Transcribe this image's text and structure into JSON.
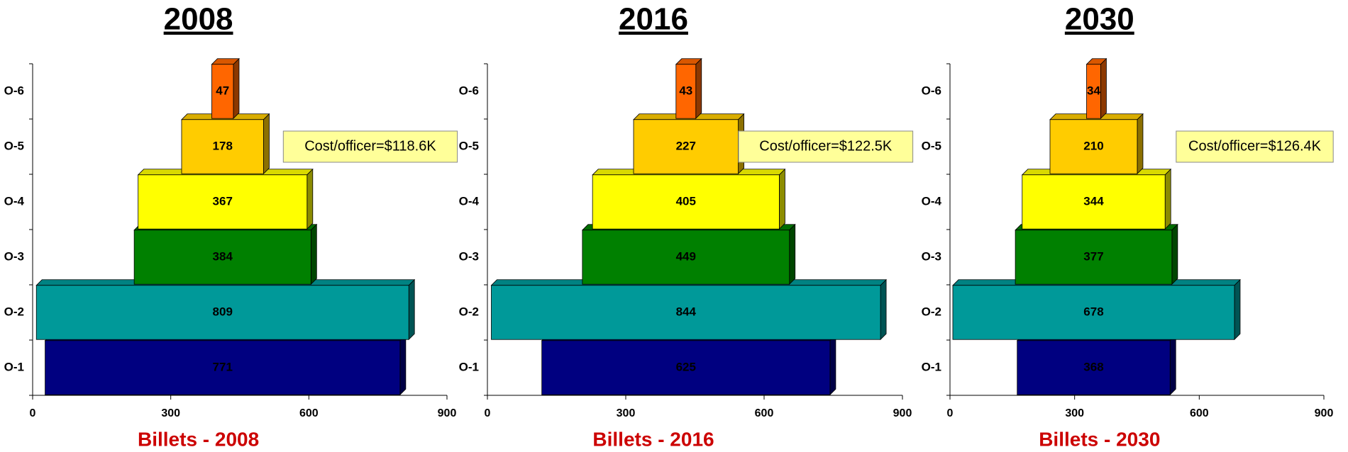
{
  "chart_data": [
    {
      "type": "bar",
      "title": "2008",
      "x_label": "Billets - 2008",
      "categories": [
        "O-1",
        "O-2",
        "O-3",
        "O-4",
        "O-5",
        "O-6"
      ],
      "values": [
        771,
        809,
        384,
        367,
        178,
        47
      ],
      "colors": [
        "#000080",
        "#009999",
        "#008000",
        "#ffff00",
        "#ffcc00",
        "#ff6600"
      ],
      "annotation": "Cost/officer=$118.6K",
      "xlim": [
        0,
        900
      ],
      "xticks": [
        0,
        300,
        600,
        900
      ]
    },
    {
      "type": "bar",
      "title": "2016",
      "x_label": "Billets - 2016",
      "categories": [
        "O-1",
        "O-2",
        "O-3",
        "O-4",
        "O-5",
        "O-6"
      ],
      "values": [
        625,
        844,
        449,
        405,
        227,
        43
      ],
      "colors": [
        "#000080",
        "#009999",
        "#008000",
        "#ffff00",
        "#ffcc00",
        "#ff6600"
      ],
      "annotation": "Cost/officer=$122.5K",
      "xlim": [
        0,
        900
      ],
      "xticks": [
        0,
        300,
        600,
        900
      ]
    },
    {
      "type": "bar",
      "title": "2030",
      "x_label": "Billets - 2030",
      "categories": [
        "O-1",
        "O-2",
        "O-3",
        "O-4",
        "O-5",
        "O-6"
      ],
      "values": [
        368,
        678,
        377,
        344,
        210,
        34
      ],
      "colors": [
        "#000080",
        "#009999",
        "#008000",
        "#ffff00",
        "#ffcc00",
        "#ff6600"
      ],
      "annotation": "Cost/officer=$126.4K",
      "xlim": [
        0,
        900
      ],
      "xticks": [
        0,
        300,
        600,
        900
      ]
    }
  ]
}
